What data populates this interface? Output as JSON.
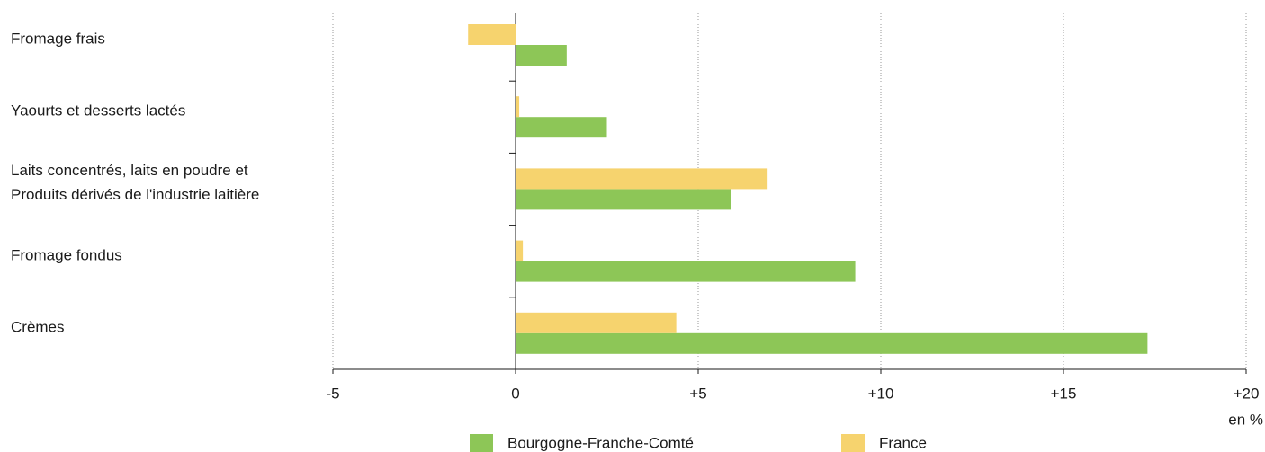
{
  "chart_data": {
    "type": "hbar",
    "categories": [
      "Fromage frais",
      "Yaourts et desserts lactés",
      "Laits concentrés, laits en poudre et\nProduits dérivés de l'industrie laitière",
      "Fromage fondus",
      "Crèmes"
    ],
    "series": [
      {
        "name": "Bourgogne-Franche-Comté",
        "color": "#8dc657",
        "values": [
          1.4,
          2.5,
          5.9,
          9.3,
          17.3
        ]
      },
      {
        "name": "France",
        "color": "#f6d36e",
        "values": [
          -1.3,
          0.1,
          6.9,
          0.2,
          4.4
        ]
      }
    ],
    "xlim": [
      -5,
      20
    ],
    "xticks": [
      -5,
      0,
      {
        "value": 5,
        "label": "+5"
      },
      {
        "value": 10,
        "label": "+10"
      },
      {
        "value": 15,
        "label": "+15"
      },
      {
        "value": 20,
        "label": "+20"
      }
    ],
    "xlabel": "en %",
    "grid": true,
    "legend": "bottom"
  }
}
